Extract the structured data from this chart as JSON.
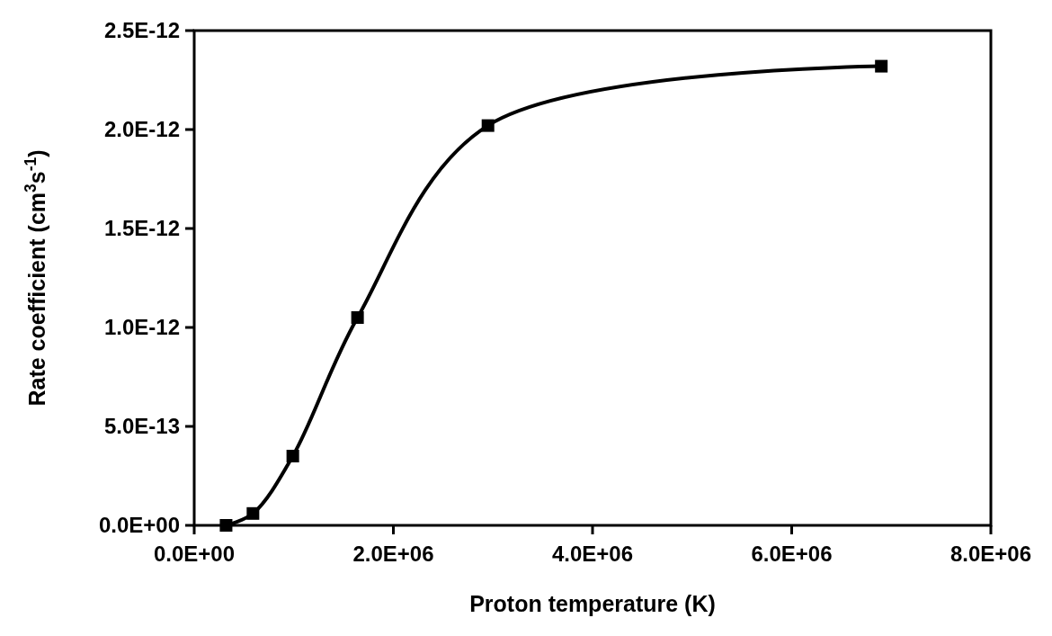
{
  "chart_data": {
    "type": "line",
    "xlabel": "Proton temperature (K)",
    "ylabel": "Rate coefficient (cm$^{3}$s$^{-1}$)",
    "x": [
      320000,
      590000,
      990000,
      1640000,
      2950000,
      6900000
    ],
    "values": [
      0,
      6e-14,
      3.5e-13,
      1.05e-12,
      2.02e-12,
      2.32e-12
    ],
    "color": "#000000",
    "marker": "square",
    "line_style": "solid",
    "grid": false,
    "xlim": [
      0,
      8000000
    ],
    "xticks": [
      {
        "value": 0,
        "label": "0.0E+00"
      },
      {
        "value": 2000000,
        "label": "2.0E+06"
      },
      {
        "value": 4000000,
        "label": "4.0E+06"
      },
      {
        "value": 6000000,
        "label": "6.0E+06"
      },
      {
        "value": 8000000,
        "label": "8.0E+06"
      }
    ],
    "ylim": [
      0,
      2.5e-12
    ],
    "yticks": [
      {
        "value": 0,
        "label": "0.0E+00"
      },
      {
        "value": 5e-13,
        "label": "5.0E-13"
      },
      {
        "value": 1e-12,
        "label": "1.0E-12"
      },
      {
        "value": 1.5e-12,
        "label": "1.5E-12"
      },
      {
        "value": 2e-12,
        "label": "2.0E-12"
      },
      {
        "value": 2.5e-12,
        "label": "2.5E-12"
      }
    ]
  }
}
